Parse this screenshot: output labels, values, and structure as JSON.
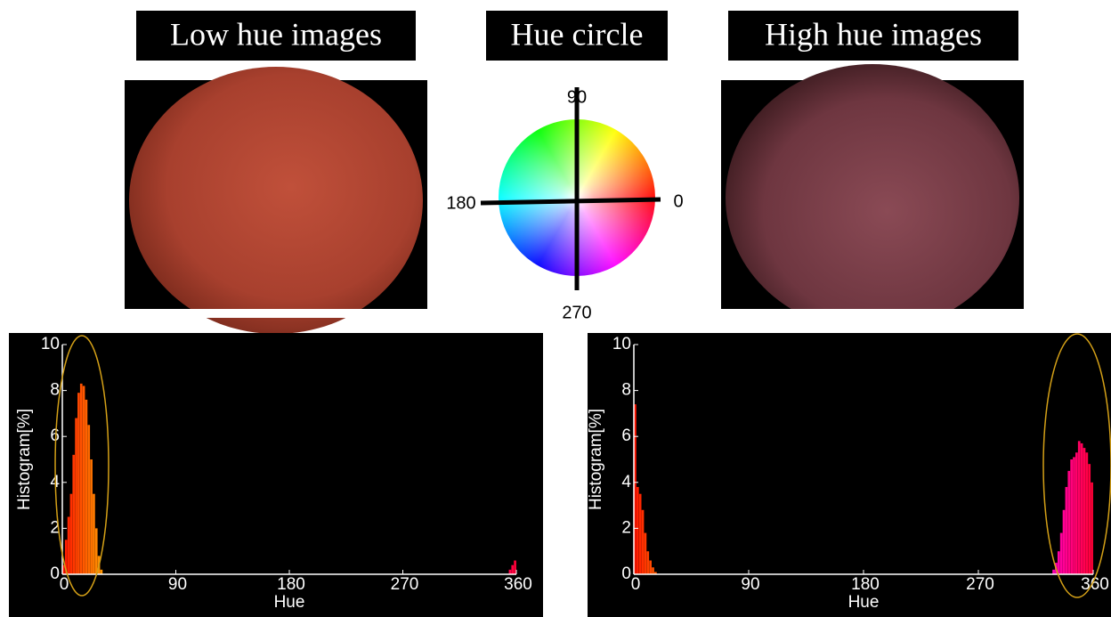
{
  "labels": {
    "low_title": "Low hue images",
    "circle_title": "Hue circle",
    "high_title": "High hue images",
    "circle_90": "90",
    "circle_0": "0",
    "circle_180": "180",
    "circle_270": "270"
  },
  "chart_data": [
    {
      "type": "bar",
      "xlabel": "Hue",
      "ylabel": "Histogram[%]",
      "x": [
        1,
        3,
        5,
        7,
        9,
        11,
        13,
        15,
        17,
        19,
        21,
        23,
        25,
        27,
        29,
        31,
        355,
        357,
        359
      ],
      "values": [
        0.4,
        1.5,
        2.5,
        3.5,
        5.2,
        6.8,
        7.9,
        8.3,
        8.2,
        7.6,
        6.5,
        5.0,
        3.5,
        2.0,
        0.8,
        0.2,
        0.2,
        0.4,
        0.6
      ],
      "xlim": [
        0,
        360
      ],
      "xticks": [
        0,
        90,
        180,
        270,
        360
      ],
      "ylim": [
        0,
        10
      ],
      "yticks": [
        0,
        2,
        4,
        6,
        8,
        10
      ]
    },
    {
      "type": "bar",
      "xlabel": "Hue",
      "ylabel": "Histogram[%]",
      "x": [
        1,
        3,
        5,
        7,
        9,
        11,
        13,
        15,
        17,
        329,
        331,
        333,
        335,
        337,
        339,
        341,
        343,
        345,
        347,
        349,
        351,
        353,
        355,
        357,
        359
      ],
      "values": [
        7.4,
        3.8,
        3.5,
        2.8,
        1.8,
        1.0,
        0.6,
        0.3,
        0.1,
        0.2,
        0.5,
        1.0,
        1.8,
        2.8,
        3.8,
        4.5,
        5.0,
        5.1,
        5.3,
        5.8,
        5.7,
        5.5,
        5.3,
        4.8,
        4.0
      ],
      "xlim": [
        0,
        360
      ],
      "xticks": [
        0,
        90,
        180,
        270,
        360
      ],
      "ylim": [
        0,
        10
      ],
      "yticks": [
        0,
        2,
        4,
        6,
        8,
        10
      ]
    }
  ]
}
